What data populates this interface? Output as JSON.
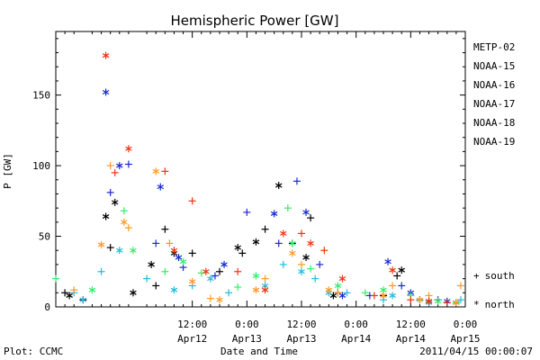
{
  "chart_data": {
    "type": "scatter",
    "title": "Hemispheric Power [GW]",
    "xlabel": "Date and Time",
    "ylabel": "P [GW]",
    "ylim": [
      0,
      195
    ],
    "xlim": [
      "2011-04-11 06:00",
      "2011-04-15 00:00"
    ],
    "yticks": [
      "0",
      "50",
      "100",
      "150"
    ],
    "xticks": [
      {
        "time": "12:00",
        "date": "Apr12"
      },
      {
        "time": "0:00",
        "date": "Apr13"
      },
      {
        "time": "12:00",
        "date": "Apr13"
      },
      {
        "time": "0:00",
        "date": "Apr14"
      },
      {
        "time": "12:00",
        "date": "Apr14"
      },
      {
        "time": "0:00",
        "date": "Apr15"
      }
    ],
    "footer_left": "Plot: CCMC",
    "footer_right": "2011/04/15 00:00:07",
    "marker_legend": [
      {
        "symbol": "+",
        "label": "south"
      },
      {
        "symbol": "*",
        "label": "north"
      }
    ],
    "series": [
      {
        "name": "METP-02",
        "color": "#000000",
        "south": [
          [
            "2011-04-11 08:00",
            10
          ],
          [
            "2011-04-11 12:00",
            5
          ],
          [
            "2011-04-11 18:00",
            42
          ],
          [
            "2011-04-12 04:00",
            15
          ],
          [
            "2011-04-12 06:00",
            55
          ],
          [
            "2011-04-12 12:00",
            38
          ],
          [
            "2011-04-12 18:00",
            25
          ],
          [
            "2011-04-12 23:00",
            38
          ],
          [
            "2011-04-13 04:00",
            55
          ],
          [
            "2011-04-13 10:00",
            45
          ],
          [
            "2011-04-13 14:00",
            63
          ],
          [
            "2011-04-13 20:00",
            10
          ],
          [
            "2011-04-14 06:00",
            8
          ],
          [
            "2011-04-14 09:00",
            22
          ],
          [
            "2011-04-14 14:00",
            5
          ],
          [
            "2011-04-14 20:00",
            3
          ]
        ],
        "north": [
          [
            "2011-04-11 09:00",
            8
          ],
          [
            "2011-04-11 17:00",
            64
          ],
          [
            "2011-04-11 19:00",
            74
          ],
          [
            "2011-04-11 23:00",
            10
          ],
          [
            "2011-04-12 03:00",
            30
          ],
          [
            "2011-04-12 08:00",
            38
          ],
          [
            "2011-04-12 22:00",
            42
          ],
          [
            "2011-04-13 02:00",
            46
          ],
          [
            "2011-04-13 07:00",
            86
          ],
          [
            "2011-04-13 13:00",
            35
          ],
          [
            "2011-04-13 19:00",
            8
          ],
          [
            "2011-04-14 10:00",
            26
          ],
          [
            "2011-04-14 16:00",
            4
          ],
          [
            "2011-04-14 22:00",
            3
          ]
        ]
      },
      {
        "name": "NOAA-15",
        "color": "#1a2bcc",
        "south": [
          [
            "2011-04-11 18:00",
            81
          ],
          [
            "2011-04-11 22:00",
            101
          ],
          [
            "2011-04-12 04:00",
            45
          ],
          [
            "2011-04-12 10:00",
            28
          ],
          [
            "2011-04-12 17:00",
            22
          ],
          [
            "2011-04-13 00:00",
            67
          ],
          [
            "2011-04-13 07:00",
            45
          ],
          [
            "2011-04-13 11:00",
            89
          ],
          [
            "2011-04-13 16:00",
            30
          ],
          [
            "2011-04-14 03:00",
            8
          ],
          [
            "2011-04-14 10:00",
            15
          ],
          [
            "2011-04-14 18:00",
            5
          ]
        ],
        "north": [
          [
            "2011-04-11 17:00",
            152
          ],
          [
            "2011-04-11 20:00",
            100
          ],
          [
            "2011-04-12 05:00",
            85
          ],
          [
            "2011-04-12 09:00",
            35
          ],
          [
            "2011-04-12 19:00",
            30
          ],
          [
            "2011-04-13 06:00",
            66
          ],
          [
            "2011-04-13 13:00",
            67
          ],
          [
            "2011-04-13 21:00",
            8
          ],
          [
            "2011-04-14 07:00",
            32
          ],
          [
            "2011-04-14 12:00",
            10
          ],
          [
            "2011-04-14 20:00",
            4
          ]
        ]
      },
      {
        "name": "NOAA-16",
        "color": "#22bbdd",
        "south": [
          [
            "2011-04-11 10:00",
            10
          ],
          [
            "2011-04-11 16:00",
            25
          ],
          [
            "2011-04-12 02:00",
            20
          ],
          [
            "2011-04-12 12:00",
            15
          ],
          [
            "2011-04-12 20:00",
            10
          ],
          [
            "2011-04-13 08:00",
            30
          ],
          [
            "2011-04-13 15:00",
            20
          ],
          [
            "2011-04-13 22:00",
            10
          ],
          [
            "2011-04-14 06:00",
            5
          ],
          [
            "2011-04-14 14:00",
            5
          ],
          [
            "2011-04-14 23:00",
            5
          ]
        ],
        "north": [
          [
            "2011-04-11 12:00",
            5
          ],
          [
            "2011-04-11 20:00",
            40
          ],
          [
            "2011-04-12 08:00",
            12
          ],
          [
            "2011-04-12 16:00",
            20
          ],
          [
            "2011-04-13 04:00",
            15
          ],
          [
            "2011-04-13 12:00",
            25
          ],
          [
            "2011-04-13 18:00",
            10
          ],
          [
            "2011-04-14 08:00",
            8
          ],
          [
            "2011-04-14 16:00",
            3
          ]
        ]
      },
      {
        "name": "NOAA-17",
        "color": "#33ee66",
        "south": [
          [
            "2011-04-11 06:00",
            20
          ],
          [
            "2011-04-11 21:00",
            68
          ],
          [
            "2011-04-12 06:00",
            25
          ],
          [
            "2011-04-12 14:00",
            24
          ],
          [
            "2011-04-12 22:00",
            14
          ],
          [
            "2011-04-13 09:00",
            70
          ],
          [
            "2011-04-13 14:00",
            27
          ],
          [
            "2011-04-14 02:00",
            10
          ],
          [
            "2011-04-14 12:00",
            8
          ],
          [
            "2011-04-14 22:00",
            3
          ]
        ],
        "north": [
          [
            "2011-04-11 14:00",
            12
          ],
          [
            "2011-04-11 23:00",
            40
          ],
          [
            "2011-04-12 10:00",
            32
          ],
          [
            "2011-04-13 02:00",
            22
          ],
          [
            "2011-04-13 10:00",
            45
          ],
          [
            "2011-04-13 20:00",
            15
          ],
          [
            "2011-04-14 06:00",
            12
          ],
          [
            "2011-04-14 18:00",
            4
          ]
        ]
      },
      {
        "name": "NOAA-18",
        "color": "#ff9922",
        "south": [
          [
            "2011-04-11 10:00",
            12
          ],
          [
            "2011-04-11 18:00",
            100
          ],
          [
            "2011-04-11 22:00",
            56
          ],
          [
            "2011-04-12 07:00",
            45
          ],
          [
            "2011-04-12 16:00",
            6
          ],
          [
            "2011-04-13 04:00",
            20
          ],
          [
            "2011-04-13 12:00",
            30
          ],
          [
            "2011-04-13 20:00",
            10
          ],
          [
            "2011-04-14 08:00",
            15
          ],
          [
            "2011-04-14 16:00",
            8
          ],
          [
            "2011-04-14 23:00",
            15
          ]
        ],
        "north": [
          [
            "2011-04-11 16:00",
            44
          ],
          [
            "2011-04-11 21:00",
            60
          ],
          [
            "2011-04-12 04:00",
            96
          ],
          [
            "2011-04-12 12:00",
            18
          ],
          [
            "2011-04-12 18:00",
            5
          ],
          [
            "2011-04-13 02:00",
            12
          ],
          [
            "2011-04-13 10:00",
            38
          ],
          [
            "2011-04-13 18:00",
            12
          ],
          [
            "2011-04-14 06:00",
            8
          ],
          [
            "2011-04-14 14:00",
            5
          ],
          [
            "2011-04-14 22:00",
            3
          ]
        ]
      },
      {
        "name": "NOAA-19",
        "color": "#ee3311",
        "south": [
          [
            "2011-04-11 19:00",
            95
          ],
          [
            "2011-04-12 06:00",
            96
          ],
          [
            "2011-04-12 12:00",
            75
          ],
          [
            "2011-04-12 22:00",
            25
          ],
          [
            "2011-04-13 12:00",
            52
          ],
          [
            "2011-04-13 17:00",
            40
          ],
          [
            "2011-04-14 04:00",
            8
          ],
          [
            "2011-04-14 12:00",
            5
          ],
          [
            "2011-04-14 20:00",
            3
          ]
        ],
        "north": [
          [
            "2011-04-11 17:00",
            178
          ],
          [
            "2011-04-11 22:00",
            112
          ],
          [
            "2011-04-12 08:00",
            40
          ],
          [
            "2011-04-12 15:00",
            25
          ],
          [
            "2011-04-13 04:00",
            12
          ],
          [
            "2011-04-13 08:00",
            52
          ],
          [
            "2011-04-13 14:00",
            45
          ],
          [
            "2011-04-13 21:00",
            20
          ],
          [
            "2011-04-14 08:00",
            26
          ],
          [
            "2011-04-14 16:00",
            4
          ]
        ]
      }
    ]
  }
}
